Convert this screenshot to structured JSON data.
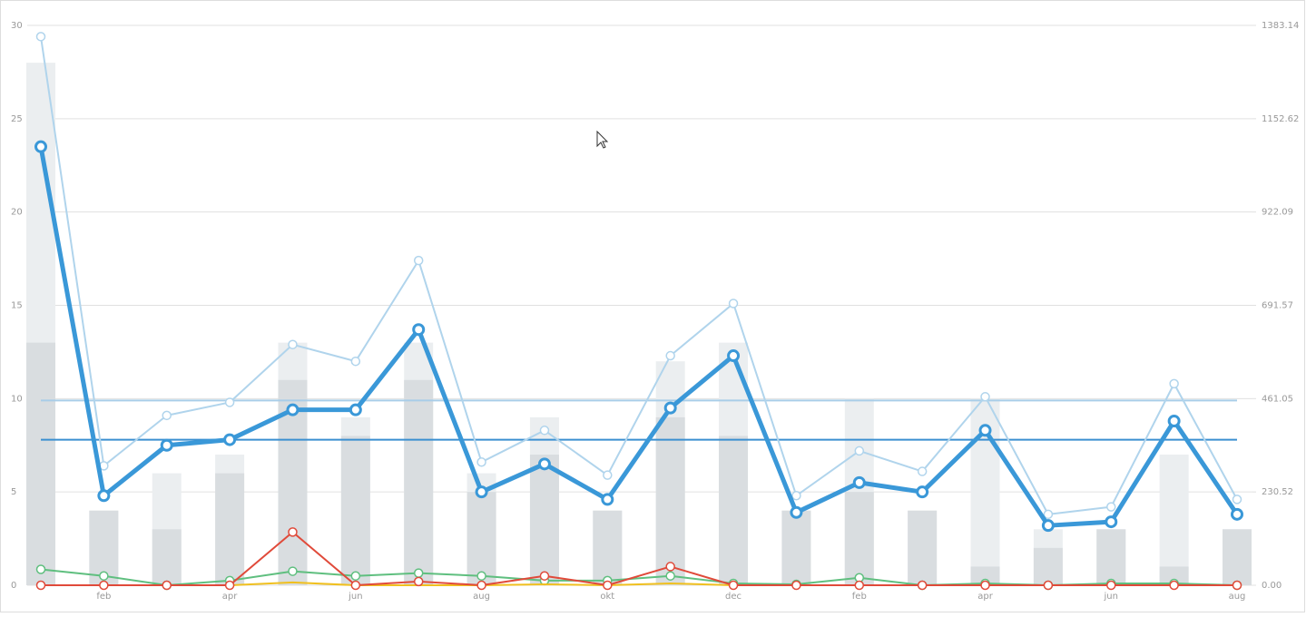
{
  "chart_data": {
    "type": "combo",
    "categories": [
      null,
      "feb",
      null,
      "apr",
      null,
      "jun",
      null,
      "aug",
      null,
      "okt",
      null,
      "dec",
      null,
      "feb",
      null,
      "apr",
      null,
      "jun",
      null,
      "aug"
    ],
    "ylim": [
      0,
      30
    ],
    "yticks": [
      0,
      5,
      10,
      15,
      20,
      25,
      30
    ],
    "y2lim": [
      0,
      1383.14
    ],
    "y2ticks": [
      {
        "value": 0,
        "label": "0.00"
      },
      230.52,
      461.05,
      691.57,
      922.09,
      1152.62,
      1383.14
    ],
    "grid": true,
    "series": [
      {
        "kind": "bar",
        "color": "#ebeef0",
        "values": [
          28,
          4,
          6,
          7,
          13,
          9,
          13,
          6,
          9,
          4,
          12,
          13,
          4,
          10,
          4,
          10,
          3,
          3,
          7,
          3
        ]
      },
      {
        "kind": "bar",
        "color": "#d9dde0",
        "values": [
          13,
          4,
          3,
          6,
          11,
          8,
          11,
          5,
          7,
          4,
          9,
          8,
          4,
          5,
          4,
          1,
          2,
          3,
          1,
          3
        ]
      },
      {
        "kind": "line",
        "color": "#5fbf7f",
        "line_width": 2,
        "markers": true,
        "values": [
          0.85,
          0.5,
          0,
          0.25,
          0.75,
          0.5,
          0.65,
          0.5,
          0.25,
          0.25,
          0.5,
          0.1,
          0.05,
          0.4,
          0,
          0.1,
          0,
          0.1,
          0.1,
          0
        ]
      },
      {
        "kind": "line",
        "color": "#f0c020",
        "line_width": 2,
        "markers": false,
        "values": [
          0,
          0,
          0,
          0,
          0.15,
          0,
          0,
          0,
          0.05,
          0,
          0.1,
          0,
          0,
          0,
          0,
          0,
          0,
          0,
          0,
          0
        ]
      },
      {
        "kind": "line",
        "color": "#e04a3a",
        "line_width": 2,
        "markers": true,
        "values": [
          0,
          0,
          0,
          0,
          2.85,
          0,
          0.2,
          0,
          0.5,
          0,
          1.0,
          0,
          0,
          0,
          0,
          0,
          0,
          0,
          0,
          0
        ]
      },
      {
        "kind": "line",
        "color": "#b0d4ec",
        "line_width": 2,
        "markers": true,
        "values": [
          29.4,
          6.4,
          9.1,
          9.8,
          12.9,
          12.0,
          17.4,
          6.6,
          8.3,
          5.9,
          12.3,
          15.1,
          4.8,
          7.2,
          6.1,
          10.1,
          3.8,
          4.2,
          10.8,
          4.6
        ]
      },
      {
        "kind": "line",
        "color": "#3a98d8",
        "line_width": 5,
        "markers": true,
        "values": [
          23.5,
          4.8,
          7.5,
          7.8,
          9.4,
          9.4,
          13.7,
          5.0,
          6.5,
          4.6,
          9.5,
          12.3,
          3.9,
          5.5,
          5.0,
          8.3,
          3.2,
          3.4,
          8.8,
          3.8
        ]
      }
    ],
    "reference_lines": [
      {
        "value": 9.9,
        "color": "#a8cde8"
      },
      {
        "value": 7.8,
        "color": "#3a8fd0"
      }
    ]
  }
}
